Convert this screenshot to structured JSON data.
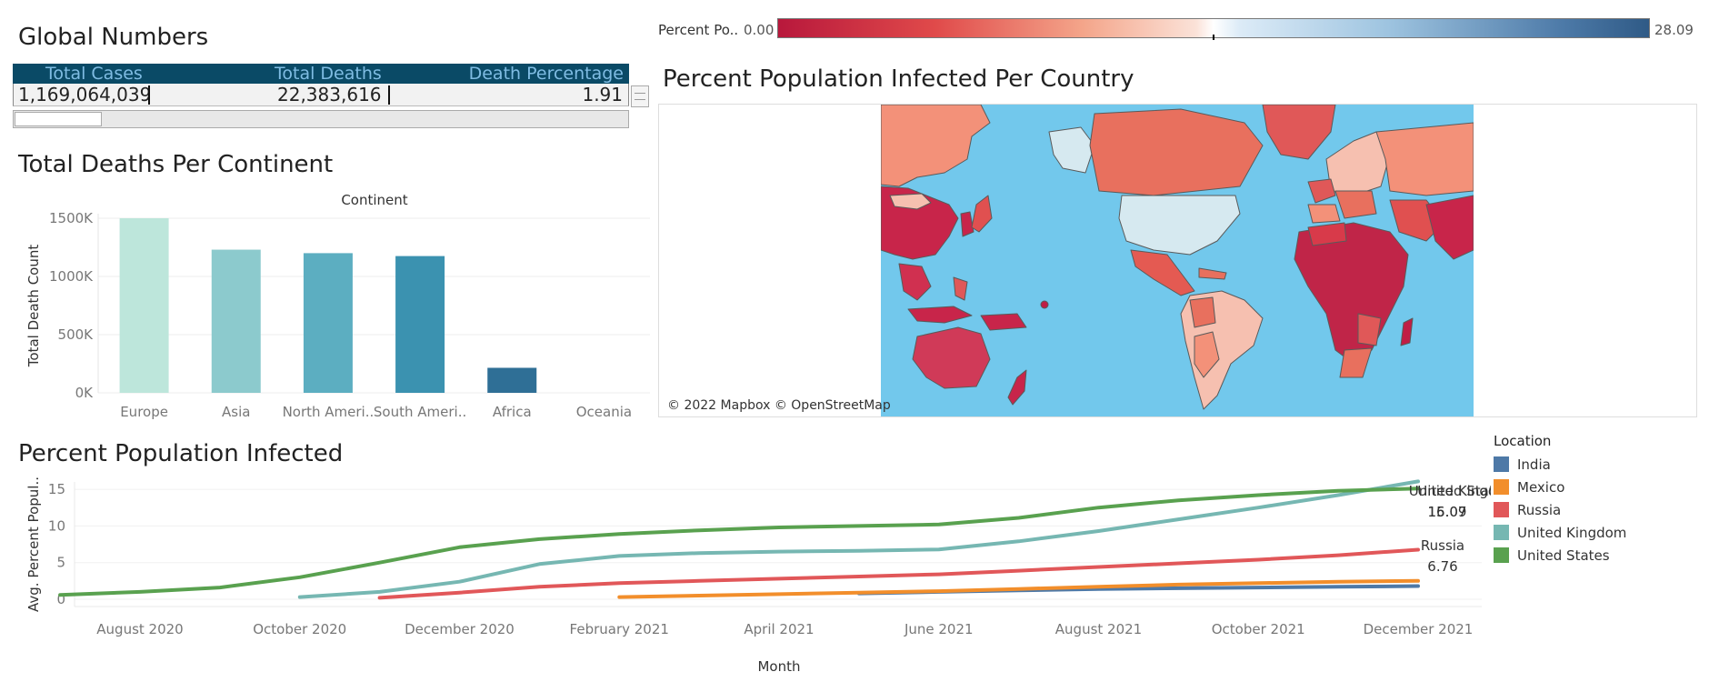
{
  "global": {
    "title": "Global Numbers",
    "headers": [
      "Total Cases",
      "Total Deaths",
      "Death Percentage"
    ],
    "values": [
      "1,169,064,039",
      "22,383,616",
      "1.91"
    ]
  },
  "continent_section": {
    "title": "Total Deaths Per Continent"
  },
  "map_section": {
    "title": "Percent Population Infected Per Country",
    "legend_label": "Percent Po..",
    "legend_min": "0.00",
    "legend_max": "28.09",
    "credit": "© 2022 Mapbox © OpenStreetMap",
    "sea_color": "#72c8ec"
  },
  "infected_section": {
    "title": "Percent Population Infected"
  },
  "legend": {
    "title": "Location",
    "items": [
      {
        "name": "India",
        "color": "#4e79a7"
      },
      {
        "name": "Mexico",
        "color": "#f28e2b"
      },
      {
        "name": "Russia",
        "color": "#e15759"
      },
      {
        "name": "United Kingdom",
        "color": "#76b7b2"
      },
      {
        "name": "United States",
        "color": "#59a14f"
      }
    ]
  },
  "chart_data": [
    {
      "type": "bar",
      "title": "",
      "xlabel": "Continent",
      "ylabel": "Total Death Count",
      "categories": [
        "Europe",
        "Asia",
        "North Ameri..",
        "South Ameri..",
        "Africa",
        "Oceania"
      ],
      "values": [
        1500000,
        1230000,
        1200000,
        1175000,
        215000,
        3000
      ],
      "colors": [
        "#bde6db",
        "#8ccacd",
        "#5caec1",
        "#3b92b0",
        "#2f6f96",
        "#2a5f85"
      ],
      "ylim": [
        0,
        1500000
      ],
      "yticks": [
        0,
        500000,
        1000000,
        1500000
      ],
      "ytick_labels": [
        "0K",
        "500K",
        "1000K",
        "1500K"
      ],
      "grid": true
    },
    {
      "type": "line",
      "xlabel": "Month",
      "ylabel": "Avg. Percent Popul..",
      "x": [
        "2020-07",
        "2020-08",
        "2020-09",
        "2020-10",
        "2020-11",
        "2020-12",
        "2021-01",
        "2021-02",
        "2021-03",
        "2021-04",
        "2021-05",
        "2021-06",
        "2021-07",
        "2021-08",
        "2021-09",
        "2021-10",
        "2021-11",
        "2021-12"
      ],
      "xtick_labels": [
        "August 2020",
        "October 2020",
        "December 2020",
        "February 2021",
        "April 2021",
        "June 2021",
        "August 2021",
        "October 2021",
        "December 2021"
      ],
      "ylim": [
        0,
        16
      ],
      "yticks": [
        0,
        5,
        10,
        15
      ],
      "series": [
        {
          "name": "United States",
          "color": "#59a14f",
          "values": [
            0.6,
            1.0,
            1.6,
            3.0,
            5.0,
            7.1,
            8.2,
            8.9,
            9.4,
            9.8,
            10.0,
            10.2,
            11.1,
            12.5,
            13.5,
            14.2,
            14.8,
            15.09
          ]
        },
        {
          "name": "United Kingdom",
          "color": "#76b7b2",
          "values": [
            null,
            null,
            null,
            0.3,
            1.0,
            2.4,
            4.8,
            5.9,
            6.3,
            6.5,
            6.6,
            6.8,
            7.9,
            9.3,
            10.9,
            12.5,
            14.2,
            16.07
          ]
        },
        {
          "name": "Russia",
          "color": "#e15759",
          "values": [
            null,
            null,
            null,
            null,
            0.2,
            0.9,
            1.7,
            2.2,
            2.5,
            2.8,
            3.1,
            3.4,
            3.9,
            4.4,
            4.9,
            5.4,
            6.0,
            6.76
          ]
        },
        {
          "name": "Mexico",
          "color": "#f28e2b",
          "values": [
            null,
            null,
            null,
            null,
            null,
            null,
            null,
            0.3,
            0.5,
            0.7,
            0.9,
            1.1,
            1.4,
            1.7,
            2.0,
            2.2,
            2.4,
            2.5
          ]
        },
        {
          "name": "India",
          "color": "#4e79a7",
          "values": [
            null,
            null,
            null,
            null,
            null,
            null,
            null,
            null,
            null,
            null,
            0.8,
            1.0,
            1.2,
            1.4,
            1.5,
            1.6,
            1.7,
            1.8
          ]
        }
      ],
      "end_labels": [
        {
          "name": "United States",
          "value": "15.09"
        },
        {
          "name": "United Kingdom",
          "value": "16.07"
        },
        {
          "name": "Russia",
          "value": "6.76"
        }
      ]
    }
  ]
}
